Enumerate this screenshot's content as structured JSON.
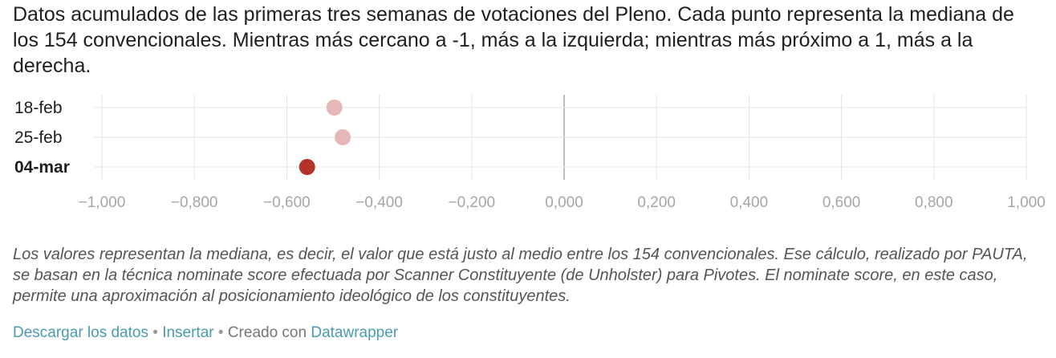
{
  "description": "Datos acumulados de las primeras tres semanas de votaciones del Pleno. Cada punto representa la mediana de los 154 convencionales. Mientras más cercano a -1, más a la izquierda; mientras más próximo a 1, más a la derecha.",
  "notes": "Los valores representan la mediana, es decir, el valor que está justo al medio entre los 154 convencionales. Ese cálculo, realizado por PAUTA, se basan en la técnica nominate score efectuada por Scanner Constituyente (de Unholster) para Pivotes. El nominate score, en este caso, permite una aproximación al posicionamiento ideológico de los constituyentes.",
  "footer": {
    "download_label": "Descargar los datos",
    "separator": " • ",
    "embed_label": "Insertar",
    "created_with": "Creado con ",
    "tool_label": "Datawrapper"
  },
  "colors": {
    "point_latest": "#b5322b",
    "point_past": "#e6b7b7",
    "gridline": "#e6e6e6",
    "zero_line": "#bdbdbd",
    "tick_label": "#a6a6a6",
    "link": "#4a9bb0"
  },
  "chart_data": {
    "type": "scatter",
    "title": "",
    "xlabel": "",
    "ylabel": "",
    "xlim": [
      -1,
      1
    ],
    "x_ticks": [
      -1,
      -0.8,
      -0.6,
      -0.4,
      -0.2,
      0,
      0.2,
      0.4,
      0.6,
      0.8,
      1
    ],
    "x_tick_labels": [
      "−1,000",
      "−0,800",
      "−0,600",
      "−0,400",
      "−0,200",
      "0,000",
      "0,200",
      "0,400",
      "0,600",
      "0,800",
      "1,000"
    ],
    "grid": true,
    "categories": [
      "18-feb",
      "25-feb",
      "04-mar"
    ],
    "values": [
      -0.497,
      -0.479,
      -0.556
    ],
    "highlight": "04-mar"
  }
}
